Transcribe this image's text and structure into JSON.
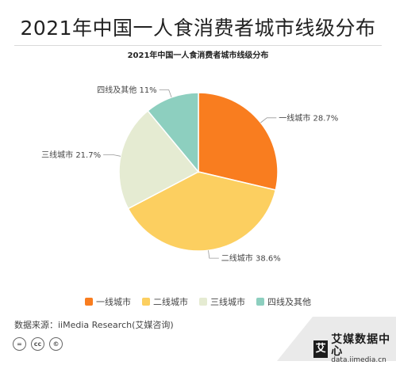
{
  "page_title": "2021年中国一人食消费者城市线级分布",
  "chart_data": {
    "type": "pie",
    "title": "2021年中国一人食消费者城市线级分布",
    "slices": [
      {
        "label": "一线城市",
        "value": 28.7,
        "display": "一线城市 28.7%",
        "color": "#f97d1f"
      },
      {
        "label": "二线城市",
        "value": 38.6,
        "display": "二线城市 38.6%",
        "color": "#fccf60"
      },
      {
        "label": "三线城市",
        "value": 21.7,
        "display": "三线城市 21.7%",
        "color": "#e5ebd2"
      },
      {
        "label": "四线及其他",
        "value": 11,
        "display": "四线及其他 11%",
        "color": "#8dcfbf"
      }
    ],
    "legend_position": "bottom"
  },
  "source": "数据来源：iiMedia Research(艾媒咨询)",
  "license_icons": [
    "=",
    "cc",
    "©"
  ],
  "brand": {
    "logo": "艾",
    "name": "艾媒数据中心",
    "url": "data.iimedia.cn"
  }
}
